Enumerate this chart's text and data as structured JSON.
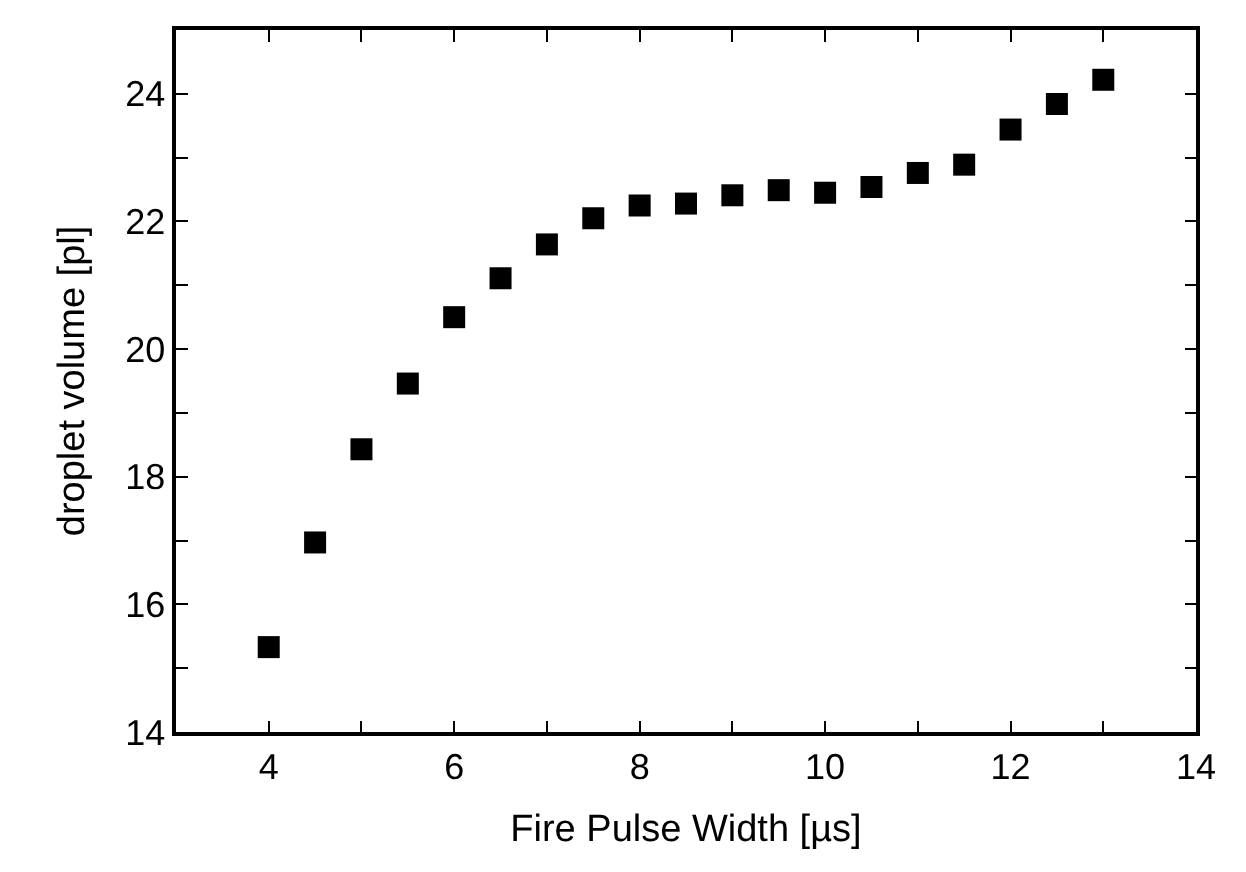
{
  "chart_data": {
    "type": "scatter",
    "xlabel": "Fire Pulse Width [µs]",
    "ylabel": "droplet volume [pl]",
    "x": [
      4,
      4.5,
      5,
      5.5,
      6,
      6.5,
      7,
      7.5,
      8,
      8.5,
      9,
      9.5,
      10,
      10.5,
      11,
      11.5,
      12,
      12.5,
      13
    ],
    "series": [
      {
        "color": "#000000",
        "values": [
          15.33,
          16.97,
          18.43,
          19.46,
          20.5,
          21.11,
          21.64,
          22.05,
          22.25,
          22.28,
          22.41,
          22.49,
          22.45,
          22.54,
          22.76,
          22.89,
          23.44,
          23.84,
          24.22
        ]
      }
    ],
    "marker": "square",
    "legend": false,
    "xlim": [
      3,
      14
    ],
    "ylim": [
      14,
      25
    ],
    "xticks": [
      {
        "value": 3,
        "label": null
      },
      4,
      {
        "value": 5,
        "label": null
      },
      6,
      {
        "value": 7,
        "label": null
      },
      8,
      {
        "value": 9,
        "label": null
      },
      10,
      {
        "value": 11,
        "label": null
      },
      12,
      {
        "value": 13,
        "label": null
      },
      14
    ],
    "yticks": [
      14,
      {
        "value": 15,
        "label": null
      },
      16,
      {
        "value": 17,
        "label": null
      },
      18,
      {
        "value": 19,
        "label": null
      },
      20,
      {
        "value": 21,
        "label": null
      },
      22,
      {
        "value": 23,
        "label": null
      },
      24,
      {
        "value": 25,
        "label": null
      }
    ]
  }
}
